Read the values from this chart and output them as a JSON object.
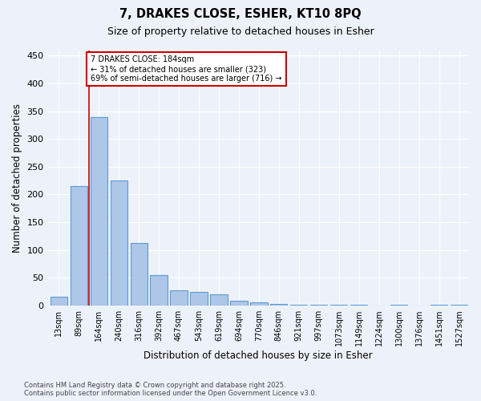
{
  "title_line1": "7, DRAKES CLOSE, ESHER, KT10 8PQ",
  "title_line2": "Size of property relative to detached houses in Esher",
  "xlabel": "Distribution of detached houses by size in Esher",
  "ylabel": "Number of detached properties",
  "categories": [
    "13sqm",
    "89sqm",
    "164sqm",
    "240sqm",
    "316sqm",
    "392sqm",
    "467sqm",
    "543sqm",
    "619sqm",
    "694sqm",
    "770sqm",
    "846sqm",
    "921sqm",
    "997sqm",
    "1073sqm",
    "1149sqm",
    "1224sqm",
    "1300sqm",
    "1376sqm",
    "1451sqm",
    "1527sqm"
  ],
  "values": [
    16,
    215,
    340,
    225,
    113,
    55,
    27,
    25,
    20,
    8,
    5,
    3,
    2,
    2,
    1,
    1,
    0,
    1,
    0,
    2,
    2
  ],
  "bar_color": "#aec6e8",
  "bar_edge_color": "#5b9bd5",
  "red_line_x": 1.5,
  "annotation_title": "7 DRAKES CLOSE: 184sqm",
  "annotation_line1": "← 31% of detached houses are smaller (323)",
  "annotation_line2": "69% of semi-detached houses are larger (716) →",
  "annotation_box_color": "#ffffff",
  "annotation_box_edge_color": "#cc0000",
  "ylim": [
    0,
    460
  ],
  "yticks": [
    0,
    50,
    100,
    150,
    200,
    250,
    300,
    350,
    400,
    450
  ],
  "background_color": "#edf2fa",
  "grid_color": "#ffffff",
  "footer_line1": "Contains HM Land Registry data © Crown copyright and database right 2025.",
  "footer_line2": "Contains public sector information licensed under the Open Government Licence v3.0."
}
